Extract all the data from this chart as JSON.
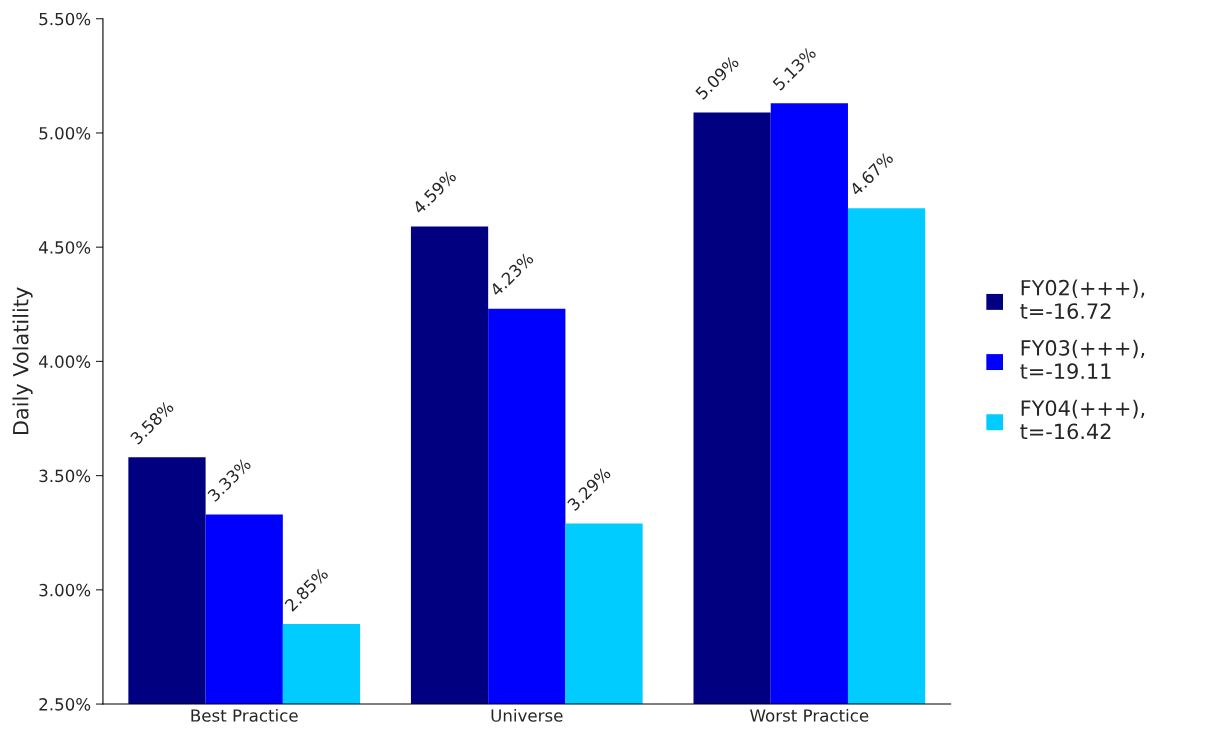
{
  "chart_data": {
    "type": "bar",
    "ylabel": "Daily Volatility",
    "categories": [
      "Best Practice",
      "Universe",
      "Worst Practice"
    ],
    "series": [
      {
        "name": "FY02(+++),\nt=-16.72",
        "color": "#000080",
        "values": [
          3.58,
          4.59,
          5.09
        ],
        "value_labels": [
          "3.58%",
          "4.59%",
          "5.09%"
        ]
      },
      {
        "name": "FY03(+++),\nt=-19.11",
        "color": "#0000ff",
        "values": [
          3.33,
          4.23,
          5.13
        ],
        "value_labels": [
          "3.33%",
          "4.23%",
          "5.13%"
        ]
      },
      {
        "name": "FY04(+++),\nt=-16.42",
        "color": "#00ccff",
        "values": [
          2.85,
          3.29,
          4.67
        ],
        "value_labels": [
          "2.85%",
          "3.29%",
          "4.67%"
        ]
      }
    ],
    "ylim": [
      2.5,
      5.5
    ],
    "yticks": [
      {
        "value": 2.5,
        "label": "2.50%"
      },
      {
        "value": 3.0,
        "label": "3.00%"
      },
      {
        "value": 3.5,
        "label": "3.50%"
      },
      {
        "value": 4.0,
        "label": "4.00%"
      },
      {
        "value": 4.5,
        "label": "4.50%"
      },
      {
        "value": 5.0,
        "label": "5.00%"
      },
      {
        "value": 5.5,
        "label": "5.50%"
      }
    ],
    "grid": false,
    "legend": "right"
  }
}
